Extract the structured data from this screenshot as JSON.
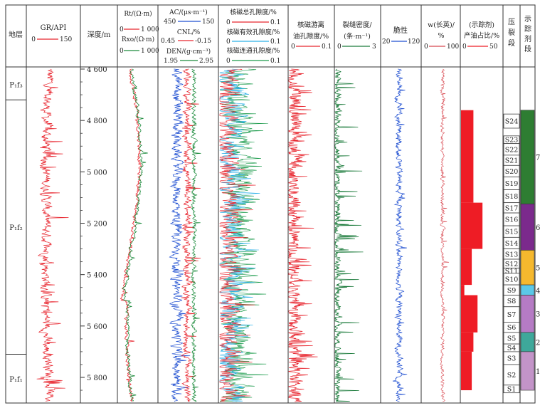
{
  "chart_data": {
    "type": "line",
    "title": "",
    "depth_axis": {
      "label": "深度/m",
      "range": [
        4600,
        5900
      ],
      "ticks": [
        "4 600",
        "4 800",
        "5 000",
        "5 200",
        "5 400",
        "5 600",
        "5 800"
      ]
    },
    "headers": {
      "strata": "地层",
      "gr_label": "GR/API",
      "gr_min": "0",
      "gr_max": "150",
      "rt_label": "Rt/(Ω·m)",
      "rt_min": "0",
      "rt_max": "1 000",
      "rxo_label": "Rxo/(Ω·m)",
      "rxo_min": "0",
      "rxo_max": "1 000",
      "ac_label": "AC/(μs·m⁻¹)",
      "ac_min": "450",
      "ac_max": "150",
      "cnl_label": "CNL/%",
      "cnl_min": "0.45",
      "cnl_max": "-0.15",
      "den_label": "DEN/(g·cm⁻³)",
      "den_min": "1.95",
      "den_max": "2.95",
      "nmr_total_label": "核磁总孔隙度/%",
      "nmr_total_min": "0",
      "nmr_total_max": "0.1",
      "nmr_eff_label": "核磁有效孔隙度/%",
      "nmr_eff_min": "0",
      "nmr_eff_max": "0.1",
      "nmr_conn_label": "核磁连通孔隙度/%",
      "nmr_conn_min": "0",
      "nmr_conn_max": "0.1",
      "free_oil_line1": "核磁游离",
      "free_oil_line2": "油孔隙度/%",
      "free_oil_min": "0",
      "free_oil_max": "0.1",
      "frac_line1": "裂缝密度/",
      "frac_line2": "(条·m⁻¹)",
      "frac_min": "0",
      "frac_max": "3",
      "brittle_label": "脆性",
      "brittle_min": "20",
      "brittle_max": "120",
      "feldspar_line1": "w(长英)/",
      "feldspar_line2": "%",
      "feldspar_min": "0",
      "feldspar_max": "100",
      "tracer_line1": "(示踪剂)",
      "tracer_line2": "产油占比/%",
      "tracer_min": "0",
      "tracer_max": "50",
      "frac_stage_chars": [
        "压",
        "裂",
        "段"
      ],
      "tracer_stage_chars": [
        "示",
        "踪",
        "剂",
        "段"
      ]
    },
    "strata": [
      {
        "label": "P₁f₃",
        "top": 4600,
        "bottom": 4720
      },
      {
        "label": "P₁f₂",
        "top": 4720,
        "bottom": 5710
      },
      {
        "label": "P₁f₁",
        "top": 5710,
        "bottom": 5900
      }
    ],
    "frac_stages": [
      {
        "name": "S24",
        "top": 4775,
        "bottom": 4830
      },
      {
        "name": "S23",
        "top": 4860,
        "bottom": 4890
      },
      {
        "name": "S22",
        "top": 4890,
        "bottom": 4935
      },
      {
        "name": "S21",
        "top": 4935,
        "bottom": 4975
      },
      {
        "name": "S20",
        "top": 4975,
        "bottom": 5020
      },
      {
        "name": "S19",
        "top": 5020,
        "bottom": 5070
      },
      {
        "name": "S18",
        "top": 5070,
        "bottom": 5120
      },
      {
        "name": "S17",
        "top": 5120,
        "bottom": 5160
      },
      {
        "name": "S16",
        "top": 5160,
        "bottom": 5210
      },
      {
        "name": "S15",
        "top": 5210,
        "bottom": 5255
      },
      {
        "name": "S14",
        "top": 5255,
        "bottom": 5300
      },
      {
        "name": "S13",
        "top": 5300,
        "bottom": 5340
      },
      {
        "name": "S12",
        "top": 5340,
        "bottom": 5375
      },
      {
        "name": "S11",
        "top": 5375,
        "bottom": 5395
      },
      {
        "name": "S10",
        "top": 5395,
        "bottom": 5440
      },
      {
        "name": "S9",
        "top": 5440,
        "bottom": 5480
      },
      {
        "name": "S8",
        "top": 5480,
        "bottom": 5525
      },
      {
        "name": "S7",
        "top": 5525,
        "bottom": 5585
      },
      {
        "name": "S6",
        "top": 5585,
        "bottom": 5625
      },
      {
        "name": "S5",
        "top": 5625,
        "bottom": 5670
      },
      {
        "name": "S4",
        "top": 5670,
        "bottom": 5700
      },
      {
        "name": "S3",
        "top": 5700,
        "bottom": 5750
      },
      {
        "name": "S2",
        "top": 5750,
        "bottom": 5830
      },
      {
        "name": "S1",
        "top": 5830,
        "bottom": 5860
      }
    ],
    "tracer_stages": [
      {
        "name": "7",
        "top": 4760,
        "bottom": 5125,
        "color": "#2e7d32"
      },
      {
        "name": "6",
        "top": 5125,
        "bottom": 5305,
        "color": "#7b2a8c"
      },
      {
        "name": "5",
        "top": 5305,
        "bottom": 5440,
        "color": "#f5b82e"
      },
      {
        "name": "4",
        "top": 5440,
        "bottom": 5480,
        "color": "#5bc8e8"
      },
      {
        "name": "3",
        "top": 5480,
        "bottom": 5625,
        "color": "#b57bc4"
      },
      {
        "name": "2",
        "top": 5625,
        "bottom": 5700,
        "color": "#3ea89a"
      },
      {
        "name": "1",
        "top": 5700,
        "bottom": 5850,
        "color": "#c394c8"
      }
    ],
    "tracer_oil_share": [
      {
        "top": 4760,
        "bottom": 5120,
        "value": 15
      },
      {
        "top": 5120,
        "bottom": 5300,
        "value": 26
      },
      {
        "top": 5300,
        "bottom": 5440,
        "value": 13
      },
      {
        "top": 5440,
        "bottom": 5480,
        "value": 4
      },
      {
        "top": 5480,
        "bottom": 5625,
        "value": 20
      },
      {
        "top": 5625,
        "bottom": 5700,
        "value": 15
      },
      {
        "top": 5700,
        "bottom": 5850,
        "value": 13
      }
    ],
    "colors": {
      "gr": "#e8262f",
      "rt": "#e8262f",
      "rxo": "#1a8a3a",
      "ac": "#1f4fd1",
      "cnl": "#e8262f",
      "den": "#1a8a3a",
      "nmr_total": "#e8262f",
      "nmr_eff": "#2ab0e8",
      "nmr_conn": "#1a9a4a",
      "free_oil": "#e8262f",
      "frac": "#1a7a3a",
      "brittle": "#1f4fd1",
      "feldspar": "#d8474f",
      "tracer": "#ee1c25"
    }
  }
}
